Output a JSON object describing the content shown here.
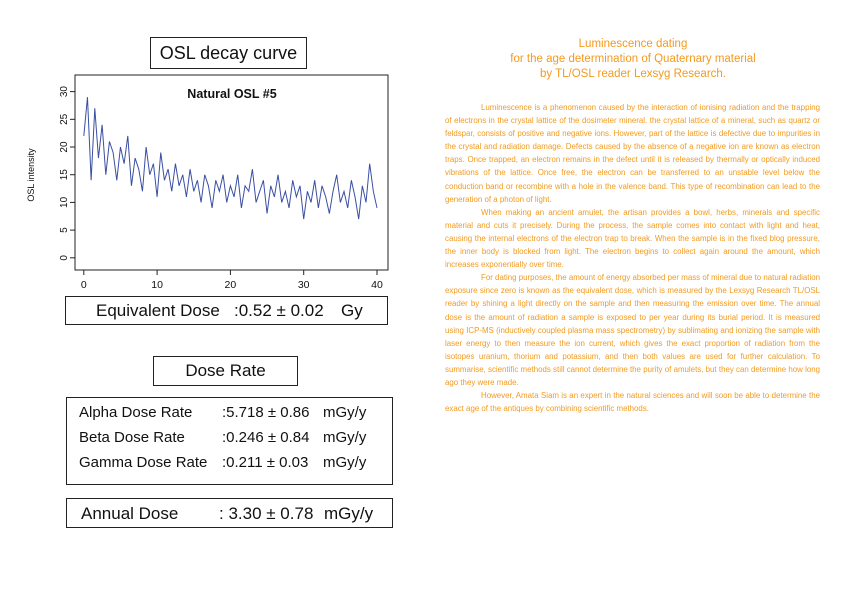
{
  "panel_title": "OSL decay curve",
  "chart_data": {
    "type": "line",
    "title": "Natural OSL #5",
    "y_label": "OSL intensity",
    "color": "#3a4fa3",
    "x": [
      0,
      0.5,
      1,
      1.5,
      2,
      2.5,
      3,
      3.5,
      4,
      4.5,
      5,
      5.5,
      6,
      6.5,
      7,
      7.5,
      8,
      8.5,
      9,
      9.5,
      10,
      10.5,
      11,
      11.5,
      12,
      12.5,
      13,
      13.5,
      14,
      14.5,
      15,
      15.5,
      16,
      16.5,
      17,
      17.5,
      18,
      18.5,
      19,
      19.5,
      20,
      20.5,
      21,
      21.5,
      22,
      22.5,
      23,
      23.5,
      24,
      24.5,
      25,
      25.5,
      26,
      26.5,
      27,
      27.5,
      28,
      28.5,
      29,
      29.5,
      30,
      30.5,
      31,
      31.5,
      32,
      32.5,
      33,
      33.5,
      34,
      34.5,
      35,
      35.5,
      36,
      36.5,
      37,
      37.5,
      38,
      38.5,
      39,
      39.5,
      40
    ],
    "values": [
      22,
      29,
      14,
      27,
      18,
      24,
      15,
      21,
      19,
      14,
      20,
      17,
      22,
      13,
      18,
      16,
      12,
      20,
      15,
      17,
      11,
      19,
      14,
      16,
      12,
      17,
      13,
      15,
      11,
      16,
      12,
      14,
      10,
      15,
      13,
      9,
      14,
      12,
      15,
      10,
      13,
      11,
      15,
      9,
      13,
      12,
      16,
      10,
      12,
      14,
      8,
      13,
      11,
      15,
      10,
      12,
      9,
      14,
      11,
      13,
      7,
      12,
      10,
      14,
      9,
      13,
      11,
      8,
      12,
      15,
      10,
      12,
      9,
      14,
      11,
      7,
      13,
      10,
      17,
      12,
      9
    ],
    "xlim": [
      -1.2,
      41.5
    ],
    "ylim": [
      -2.2,
      33
    ],
    "xticks": [
      0,
      10,
      20,
      30,
      40
    ],
    "yticks": [
      0,
      5,
      10,
      15,
      20,
      25,
      30
    ]
  },
  "equivalent_dose": {
    "label": "Equivalent Dose",
    "value": ":0.52 ± 0.02",
    "unit": "Gy"
  },
  "dose_rate_title": "Dose Rate",
  "dose_rates": [
    {
      "label": "Alpha Dose Rate",
      "value": ":5.718 ± 0.86",
      "unit": "mGy/y"
    },
    {
      "label": "Beta Dose Rate",
      "value": ":0.246 ± 0.84",
      "unit": "mGy/y"
    },
    {
      "label": "Gamma Dose Rate",
      "value": ":0.211 ± 0.03",
      "unit": "mGy/y"
    }
  ],
  "annual_dose": {
    "label": "Annual Dose",
    "value": ": 3.30 ± 0.78",
    "unit": "mGy/y"
  },
  "article": {
    "title": [
      "Luminescence dating",
      "for the age determination of Quaternary material",
      "by TL/OSL reader Lexsyg Research."
    ],
    "paragraphs": [
      "Luminescence is a phenomenon caused by the interaction of ionising radiation and the trapping of electrons in the crystal lattice of the dosimeter mineral. the crystal lattice of a mineral, such as quartz or feldspar, consists of positive and negative ions. However, part of the lattice is defective due to impurities in the crystal and radiation damage. Defects caused by the absence of a negative ion are known as electron traps. Once trapped, an electron remains in the defect until it is released by thermally or optically induced vibrations of the lattice. Once free, the electron can be transferred to an unstable level below the conduction band or recombine with a hole in the valence band. This type of recombination can lead to the generation of a photon of light.",
      "When making an ancient amulet, the artisan provides a bowl, herbs, minerals and specific material and cuts it precisely. During the process, the sample comes into contact with light and heat, causing the internal electrons of the electron trap to break. When the sample is in the fixed blog pressure, the inner body is blocked from light. The electron begins to collect again around the amount, which increases exponentially over time.",
      "For dating purposes, the amount of energy absorbed per mass of mineral due to natural radiation exposure since zero is known as the equivalent dose, which is measured by the Lexsyg Research TL/OSL reader by shining a light directly on the sample and then measuring the emission over time. The annual dose is the amount of radiation a sample is exposed to per year during its burial period. It is measured using ICP-MS (inductively coupled plasma mass spectrometry) by sublimating and ionizing the sample with laser energy to then measure the ion current, which gives the exact proportion of radiation from the isotopes uranium, thorium and potassium, and then both values are used for further calculation. To summarise, scientific methods still cannot determine the purity of amulets, but they can determine how long ago they were made.",
      "However, Amata Siam is an expert in the natural sciences and will soon be able to determine the exact age of the antiques by combining scientific methods."
    ]
  }
}
